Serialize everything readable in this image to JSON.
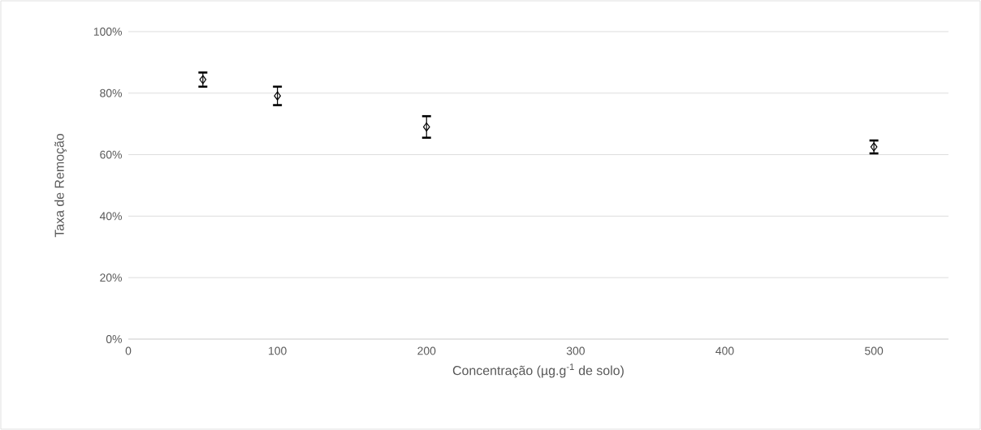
{
  "chart_data": {
    "type": "scatter",
    "xlabel": "Concentração (µg.g$^{-1}$ de solo)",
    "ylabel": "Taxa de Remoção",
    "x": [
      50,
      100,
      200,
      500
    ],
    "series": [
      {
        "color": "#000000",
        "values": [
          84.4,
          79.1,
          69.0,
          62.5
        ],
        "errors": [
          2.3,
          3.0,
          3.5,
          2.1
        ]
      }
    ],
    "xlim": [
      0,
      550
    ],
    "xticks": [
      0,
      100,
      200,
      300,
      400,
      500
    ],
    "ylim": [
      0,
      100
    ],
    "yticks": [
      {
        "value": 0,
        "label": "0%"
      },
      {
        "value": 20,
        "label": "20%"
      },
      {
        "value": 40,
        "label": "40%"
      },
      {
        "value": 60,
        "label": "60%"
      },
      {
        "value": 80,
        "label": "80%"
      },
      {
        "value": 100,
        "label": "100%"
      }
    ],
    "grid": "y",
    "marker": "diamond"
  }
}
